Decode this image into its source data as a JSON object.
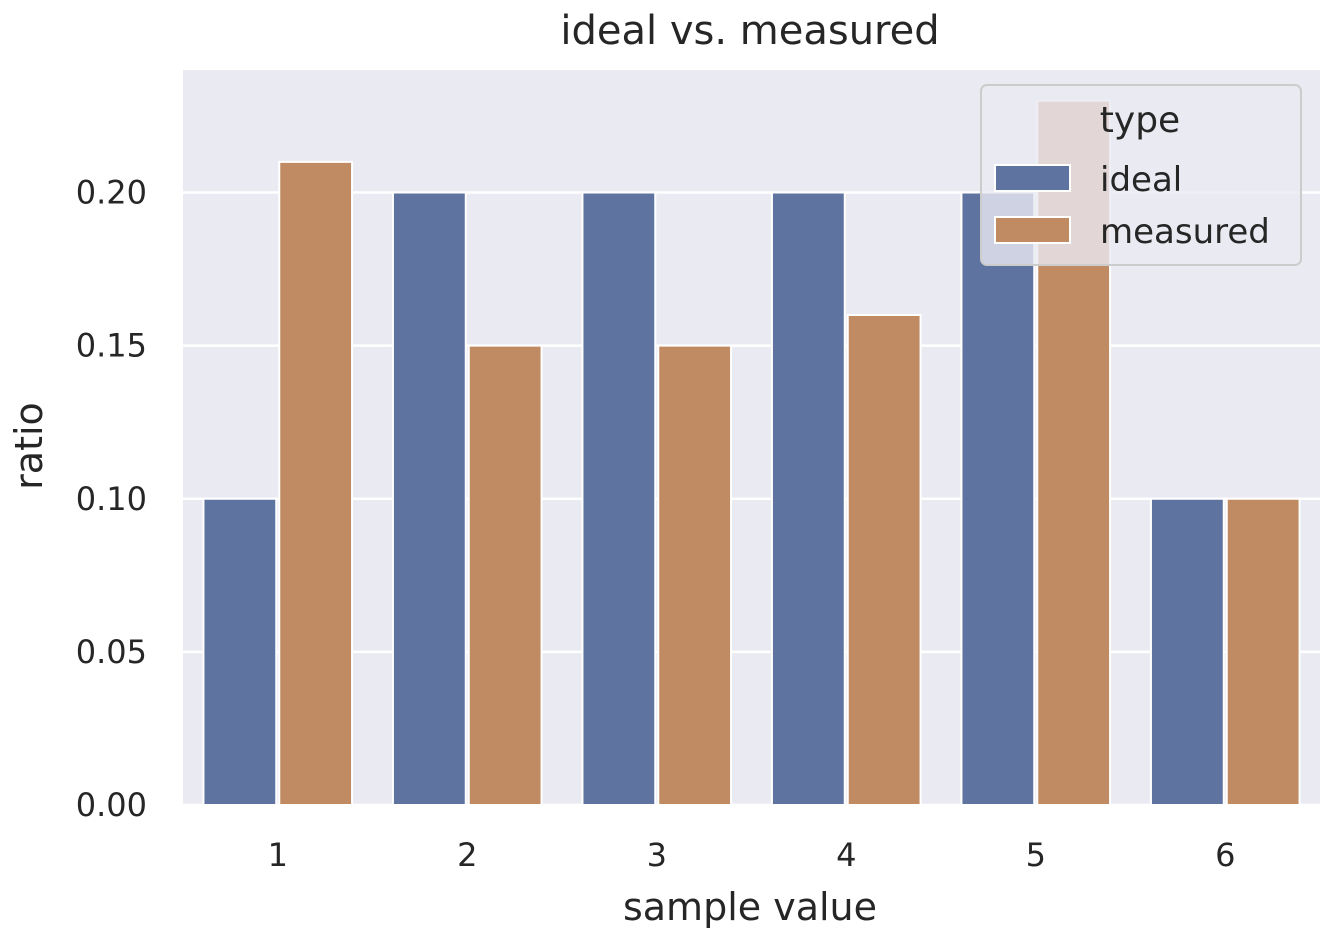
{
  "chart_data": {
    "type": "bar",
    "title": "ideal vs. measured",
    "xlabel": "sample value",
    "ylabel": "ratio",
    "categories": [
      "1",
      "2",
      "3",
      "4",
      "5",
      "6"
    ],
    "series": [
      {
        "name": "ideal",
        "color": "#5f73a1",
        "values": [
          0.1,
          0.2,
          0.2,
          0.2,
          0.2,
          0.1
        ]
      },
      {
        "name": "measured",
        "color": "#c08a63",
        "values": [
          0.21,
          0.15,
          0.15,
          0.16,
          0.23,
          0.1
        ]
      }
    ],
    "ylim": [
      0,
      0.24
    ],
    "yticks": [
      "0.00",
      "0.05",
      "0.10",
      "0.15",
      "0.20"
    ],
    "ytick_values": [
      0,
      0.05,
      0.1,
      0.15,
      0.2
    ],
    "grid": true,
    "legend": {
      "title": "type",
      "placement": "top-right"
    },
    "plot_background": "#eaeaf2"
  }
}
